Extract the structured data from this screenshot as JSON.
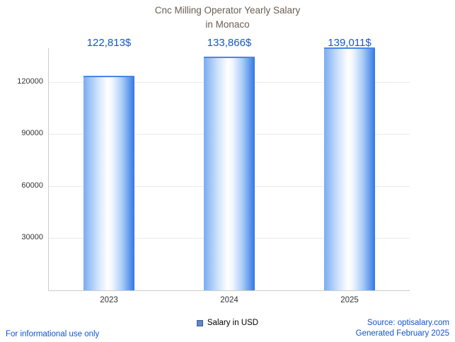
{
  "chart_data": {
    "type": "bar",
    "title": "Cnc Milling Operator Yearly Salary in Monaco",
    "title_lines": [
      "Cnc Milling Operator Yearly Salary",
      "in Monaco"
    ],
    "categories": [
      "2023",
      "2024",
      "2025"
    ],
    "values": [
      122813,
      133866,
      139011
    ],
    "value_labels": [
      "122,813$",
      "133,866$",
      "139,011$"
    ],
    "xlabel": "",
    "ylabel": "",
    "yticks": [
      30000,
      60000,
      90000,
      120000
    ],
    "ytick_labels": [
      "30000",
      "60000",
      "90000",
      "120000"
    ],
    "ylim": [
      0,
      139500
    ],
    "grid": true,
    "legend": {
      "label": "Salary in USD",
      "position": "bottom"
    }
  },
  "footer": {
    "left": "For informational use only",
    "source": "Source: optisalary.com",
    "generated": "Generated February 2025"
  },
  "colors": {
    "title": "#6a5d52",
    "value_label": "#1656c8",
    "footer_link": "#1155cc",
    "bar_left": "#7aacf2",
    "bar_right": "#3477e2",
    "bar_top": "#4a86e8",
    "axis": "#cccccc",
    "grid": "#ebebeb",
    "tick_text": "#333333",
    "legend_marker": "#6287c5",
    "legend_marker_border": "#3e5e97"
  }
}
